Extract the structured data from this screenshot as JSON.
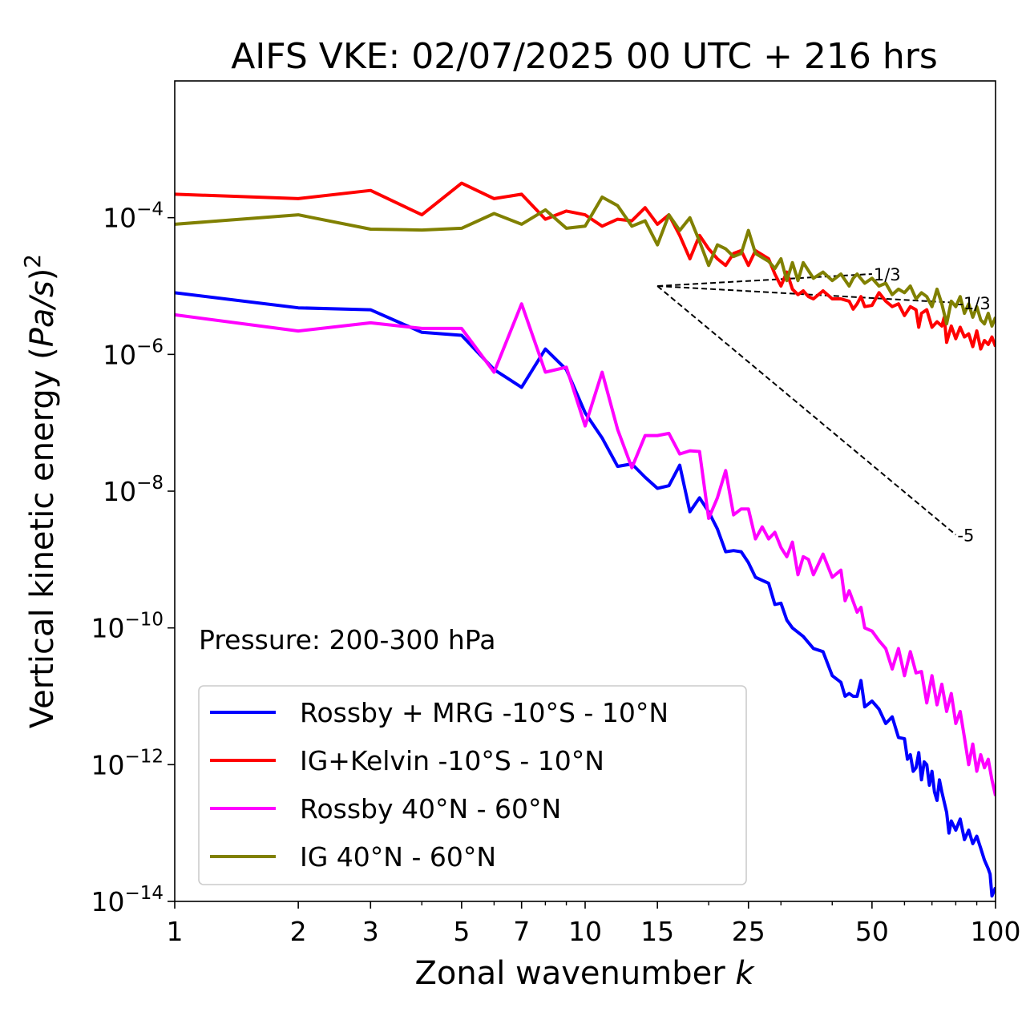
{
  "chart_data": {
    "type": "line",
    "title": "AIFS VKE: 02/07/2025 00 UTC + 216 hrs",
    "xlabel": "Zonal wavenumber",
    "xlabel_var": "k",
    "ylabel_text": "Vertical kinetic energy (",
    "ylabel_var": "Pa/s",
    "ylabel_close": ")",
    "ylabel_exp": "2",
    "x_scale": "log",
    "y_scale": "log",
    "xlim": [
      1,
      100
    ],
    "ylim": [
      1e-14,
      0.01
    ],
    "x_ticks": [
      1,
      2,
      3,
      5,
      7,
      10,
      15,
      25,
      50,
      100
    ],
    "x_tick_labels": [
      "1",
      "2",
      "3",
      "5",
      "7",
      "10",
      "15",
      "25",
      "50",
      "100"
    ],
    "y_ticks": [
      {
        "value": 0.0001,
        "base": "10",
        "exp": "−4"
      },
      {
        "value": 1e-06,
        "base": "10",
        "exp": "−6"
      },
      {
        "value": 1e-08,
        "base": "10",
        "exp": "−8"
      },
      {
        "value": 1e-10,
        "base": "10",
        "exp": "−10"
      },
      {
        "value": 1e-12,
        "base": "10",
        "exp": "−12"
      },
      {
        "value": 1e-14,
        "base": "10",
        "exp": "−14"
      }
    ],
    "annotation": "Pressure: 200-300 hPa",
    "legend_position": "lower-left",
    "grid": false,
    "reference_lines": [
      {
        "label": "1/3",
        "points": [
          [
            15,
            1e-05
          ],
          [
            50,
            1.5e-05
          ]
        ]
      },
      {
        "label": "-1/3",
        "points": [
          [
            15,
            1e-05
          ],
          [
            80,
            5.7e-06
          ]
        ]
      },
      {
        "label": "-5",
        "points": [
          [
            15,
            1e-05
          ],
          [
            80,
            2.3e-09
          ]
        ]
      }
    ],
    "series": [
      {
        "name": "Rossby + MRG -10°S - 10°N",
        "color": "#0000ff",
        "points": [
          [
            1,
            8e-06
          ],
          [
            2,
            4.8e-06
          ],
          [
            3,
            4.5e-06
          ],
          [
            4,
            2.1e-06
          ],
          [
            5,
            1.9e-06
          ],
          [
            6,
            6e-07
          ],
          [
            7,
            3.3e-07
          ],
          [
            8,
            1.2e-06
          ],
          [
            9,
            6e-07
          ],
          [
            10,
            1.4e-07
          ],
          [
            11,
            6e-08
          ],
          [
            12,
            2.3e-08
          ],
          [
            13,
            2.5e-08
          ],
          [
            14,
            1.6e-08
          ],
          [
            15,
            1.1e-08
          ],
          [
            16,
            1.2e-08
          ],
          [
            17,
            2.4e-08
          ],
          [
            18,
            5e-09
          ],
          [
            19,
            8e-09
          ],
          [
            20,
            5e-09
          ],
          [
            21,
            2.8e-09
          ],
          [
            22,
            1.3e-09
          ],
          [
            23,
            1.35e-09
          ],
          [
            24,
            1.3e-09
          ],
          [
            25,
            9e-10
          ],
          [
            26,
            5.5e-10
          ],
          [
            28,
            4.5e-10
          ],
          [
            29,
            2.2e-10
          ],
          [
            30,
            2.3e-10
          ],
          [
            31,
            1.3e-10
          ],
          [
            32,
            1e-10
          ],
          [
            34,
            7.5e-11
          ],
          [
            36,
            5e-11
          ],
          [
            38,
            4.5e-11
          ],
          [
            40,
            2e-11
          ],
          [
            42,
            1.6e-11
          ],
          [
            43,
            1e-11
          ],
          [
            44,
            1.1e-11
          ],
          [
            45,
            1e-11
          ],
          [
            46,
            1e-11
          ],
          [
            47,
            1.7e-11
          ],
          [
            48,
            7e-12
          ],
          [
            50,
            8.5e-12
          ],
          [
            52,
            6.5e-12
          ],
          [
            54,
            4e-12
          ],
          [
            56,
            5e-12
          ],
          [
            58,
            2.5e-12
          ],
          [
            60,
            2.4e-12
          ],
          [
            61,
            1.2e-12
          ],
          [
            62,
            1.4e-12
          ],
          [
            63,
            8e-13
          ],
          [
            64,
            9e-13
          ],
          [
            65,
            1.5e-12
          ],
          [
            66,
            6e-13
          ],
          [
            67,
            1.1e-12
          ],
          [
            68,
            1e-12
          ],
          [
            69,
            5e-13
          ],
          [
            70,
            8e-13
          ],
          [
            71,
            4e-13
          ],
          [
            72,
            3e-13
          ],
          [
            73,
            6e-13
          ],
          [
            74,
            4e-13
          ],
          [
            76,
            2e-13
          ],
          [
            77,
            1e-13
          ],
          [
            78,
            1.5e-13
          ],
          [
            80,
            1.1e-13
          ],
          [
            82,
            1.6e-13
          ],
          [
            84,
            8e-14
          ],
          [
            86,
            1.1e-13
          ],
          [
            88,
            7e-14
          ],
          [
            90,
            9e-14
          ],
          [
            92,
            6e-14
          ],
          [
            94,
            4e-14
          ],
          [
            96,
            3e-14
          ],
          [
            97,
            2.5e-14
          ],
          [
            98,
            1.2e-14
          ],
          [
            100,
            1.6e-14
          ]
        ]
      },
      {
        "name": "IG+Kelvin -10°S - 10°N",
        "color": "#ff0000",
        "points": [
          [
            1,
            0.00022
          ],
          [
            2,
            0.00019
          ],
          [
            3,
            0.00025
          ],
          [
            4,
            0.00011
          ],
          [
            5,
            0.00032
          ],
          [
            6,
            0.00019
          ],
          [
            7,
            0.00022
          ],
          [
            8,
            9.5e-05
          ],
          [
            9,
            0.000125
          ],
          [
            10,
            0.00011
          ],
          [
            11,
            7.5e-05
          ],
          [
            12,
            9.5e-05
          ],
          [
            13,
            9e-05
          ],
          [
            14,
            0.00014
          ],
          [
            15,
            8e-05
          ],
          [
            16,
            0.00011
          ],
          [
            17,
            5.5e-05
          ],
          [
            18,
            2.5e-05
          ],
          [
            19,
            5.5e-05
          ],
          [
            20,
            3.5e-05
          ],
          [
            21,
            2.5e-05
          ],
          [
            22,
            2e-05
          ],
          [
            23,
            3e-05
          ],
          [
            24,
            3.3e-05
          ],
          [
            25,
            2e-05
          ],
          [
            26,
            3.3e-05
          ],
          [
            28,
            2.5e-05
          ],
          [
            29,
            1.5e-05
          ],
          [
            30,
            1e-05
          ],
          [
            31,
            1.6e-05
          ],
          [
            32,
            9e-06
          ],
          [
            33,
            7.5e-06
          ],
          [
            34,
            8.5e-06
          ],
          [
            35,
            7e-06
          ],
          [
            36,
            6.5e-06
          ],
          [
            38,
            8.5e-06
          ],
          [
            40,
            6.5e-06
          ],
          [
            42,
            6.5e-06
          ],
          [
            44,
            6e-06
          ],
          [
            45,
            4.6e-06
          ],
          [
            46,
            5.5e-06
          ],
          [
            47,
            7e-06
          ],
          [
            48,
            5e-06
          ],
          [
            50,
            5.2e-06
          ],
          [
            52,
            8e-06
          ],
          [
            54,
            6e-06
          ],
          [
            56,
            5e-06
          ],
          [
            58,
            5.5e-06
          ],
          [
            60,
            3.7e-06
          ],
          [
            62,
            5e-06
          ],
          [
            64,
            4.5e-06
          ],
          [
            65,
            2.5e-06
          ],
          [
            66,
            4e-06
          ],
          [
            68,
            4.5e-06
          ],
          [
            70,
            2.5e-06
          ],
          [
            72,
            3e-06
          ],
          [
            74,
            2.6e-06
          ],
          [
            75,
            3.5e-06
          ],
          [
            76,
            1.5e-06
          ],
          [
            78,
            2.6e-06
          ],
          [
            80,
            1.7e-06
          ],
          [
            82,
            2.5e-06
          ],
          [
            84,
            1.8e-06
          ],
          [
            86,
            2e-06
          ],
          [
            88,
            1.3e-06
          ],
          [
            90,
            2.2e-06
          ],
          [
            92,
            1.2e-06
          ],
          [
            94,
            1.6e-06
          ],
          [
            96,
            1.4e-06
          ],
          [
            98,
            1.8e-06
          ],
          [
            100,
            1.3e-06
          ]
        ]
      },
      {
        "name": "Rossby 40°N - 60°N",
        "color": "#ff00ff",
        "points": [
          [
            1,
            3.8e-06
          ],
          [
            2,
            2.2e-06
          ],
          [
            3,
            2.9e-06
          ],
          [
            4,
            2.4e-06
          ],
          [
            5,
            2.4e-06
          ],
          [
            6,
            5.5e-07
          ],
          [
            7,
            5.5e-06
          ],
          [
            8,
            5.5e-07
          ],
          [
            9,
            6.5e-07
          ],
          [
            10,
            9e-08
          ],
          [
            11,
            5.5e-07
          ],
          [
            12,
            8e-08
          ],
          [
            13,
            2.2e-08
          ],
          [
            14,
            6.5e-08
          ],
          [
            15,
            6.5e-08
          ],
          [
            16,
            7e-08
          ],
          [
            17,
            3.5e-08
          ],
          [
            18,
            3.9e-08
          ],
          [
            19,
            3.8e-08
          ],
          [
            20,
            4e-09
          ],
          [
            21,
            8e-09
          ],
          [
            22,
            2e-08
          ],
          [
            23,
            4.5e-09
          ],
          [
            24,
            5.5e-09
          ],
          [
            25,
            5.5e-09
          ],
          [
            26,
            2e-09
          ],
          [
            27,
            3e-09
          ],
          [
            28,
            2e-09
          ],
          [
            29,
            2.5e-09
          ],
          [
            30,
            1.5e-09
          ],
          [
            31,
            1.1e-09
          ],
          [
            32,
            1.8e-09
          ],
          [
            33,
            6e-10
          ],
          [
            34,
            1.1e-09
          ],
          [
            35,
            1e-09
          ],
          [
            36,
            6e-10
          ],
          [
            38,
            1.2e-09
          ],
          [
            40,
            5.5e-10
          ],
          [
            42,
            7e-10
          ],
          [
            43,
            2.5e-10
          ],
          [
            44,
            3.5e-10
          ],
          [
            46,
            1.7e-10
          ],
          [
            47,
            2e-10
          ],
          [
            48,
            1e-10
          ],
          [
            50,
            9e-11
          ],
          [
            52,
            6.5e-11
          ],
          [
            54,
            5e-11
          ],
          [
            56,
            2.5e-11
          ],
          [
            58,
            5e-11
          ],
          [
            60,
            2e-11
          ],
          [
            62,
            4.5e-11
          ],
          [
            64,
            2.2e-11
          ],
          [
            66,
            2.3e-11
          ],
          [
            68,
            8e-12
          ],
          [
            70,
            2e-11
          ],
          [
            72,
            7.5e-12
          ],
          [
            74,
            1.5e-11
          ],
          [
            76,
            6e-12
          ],
          [
            78,
            1.1e-11
          ],
          [
            80,
            4e-12
          ],
          [
            82,
            6e-12
          ],
          [
            84,
            2.5e-12
          ],
          [
            86,
            1e-12
          ],
          [
            88,
            2e-12
          ],
          [
            90,
            8e-13
          ],
          [
            92,
            1.4e-12
          ],
          [
            94,
            9e-13
          ],
          [
            96,
            1.2e-12
          ],
          [
            98,
            6e-13
          ],
          [
            100,
            3.5e-13
          ]
        ]
      },
      {
        "name": "IG 40°N - 60°N",
        "color": "#808000",
        "points": [
          [
            1,
            8e-05
          ],
          [
            2,
            0.00011
          ],
          [
            3,
            6.8e-05
          ],
          [
            4,
            6.6e-05
          ],
          [
            5,
            7e-05
          ],
          [
            6,
            0.000115
          ],
          [
            7,
            8e-05
          ],
          [
            8,
            0.00013
          ],
          [
            9,
            7e-05
          ],
          [
            10,
            7.5e-05
          ],
          [
            11,
            0.0002
          ],
          [
            12,
            0.00015
          ],
          [
            13,
            7.5e-05
          ],
          [
            14,
            9e-05
          ],
          [
            15,
            4e-05
          ],
          [
            16,
            0.00011
          ],
          [
            17,
            6.5e-05
          ],
          [
            18,
            0.0001
          ],
          [
            19,
            4.5e-05
          ],
          [
            20,
            2e-05
          ],
          [
            21,
            4e-05
          ],
          [
            22,
            3.5e-05
          ],
          [
            23,
            2.7e-05
          ],
          [
            24,
            3e-05
          ],
          [
            25,
            6.5e-05
          ],
          [
            26,
            3e-05
          ],
          [
            28,
            2.3e-05
          ],
          [
            29,
            1.8e-05
          ],
          [
            30,
            2.5e-05
          ],
          [
            31,
            1.2e-05
          ],
          [
            32,
            2.2e-05
          ],
          [
            33,
            1.2e-05
          ],
          [
            34,
            2.2e-05
          ],
          [
            36,
            1.3e-05
          ],
          [
            38,
            1.6e-05
          ],
          [
            40,
            1.2e-05
          ],
          [
            42,
            1.5e-05
          ],
          [
            44,
            1e-05
          ],
          [
            45,
            1.3e-05
          ],
          [
            46,
            1.5e-05
          ],
          [
            48,
            1.1e-05
          ],
          [
            50,
            1.3e-05
          ],
          [
            52,
            1e-05
          ],
          [
            54,
            1.1e-05
          ],
          [
            56,
            7.5e-06
          ],
          [
            58,
            9e-06
          ],
          [
            60,
            8e-06
          ],
          [
            62,
            1e-05
          ],
          [
            64,
            6.5e-06
          ],
          [
            66,
            8e-06
          ],
          [
            68,
            7e-06
          ],
          [
            70,
            5e-06
          ],
          [
            72,
            9e-06
          ],
          [
            74,
            5.5e-06
          ],
          [
            76,
            2.8e-06
          ],
          [
            78,
            6e-06
          ],
          [
            80,
            5e-06
          ],
          [
            82,
            7e-06
          ],
          [
            84,
            4e-06
          ],
          [
            86,
            5.5e-06
          ],
          [
            88,
            3.5e-06
          ],
          [
            90,
            5e-06
          ],
          [
            92,
            3.2e-06
          ],
          [
            94,
            2.8e-06
          ],
          [
            96,
            4e-06
          ],
          [
            98,
            2.6e-06
          ],
          [
            100,
            3.5e-06
          ]
        ]
      }
    ]
  }
}
